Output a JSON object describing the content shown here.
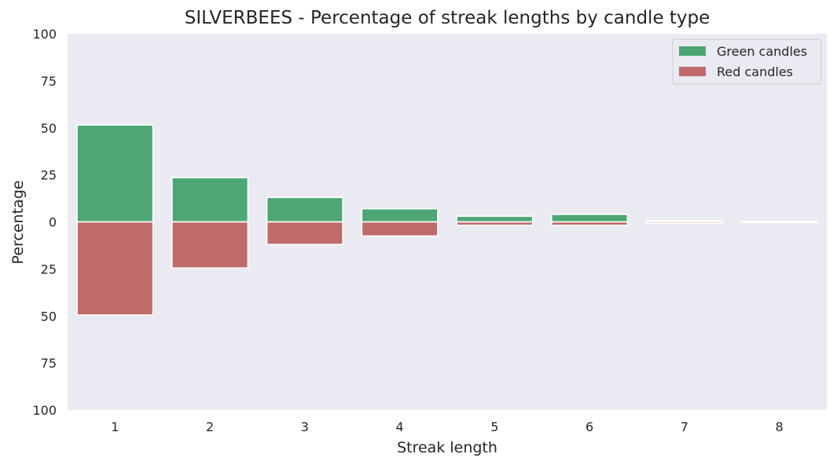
{
  "chart_data": {
    "type": "bar",
    "title": "SILVERBEES - Percentage of streak lengths by candle type",
    "xlabel": "Streak length",
    "ylabel": "Percentage",
    "categories": [
      "1",
      "2",
      "3",
      "4",
      "5",
      "6",
      "7",
      "8"
    ],
    "ylim": [
      -100,
      100
    ],
    "yticks": [
      100,
      75,
      50,
      25,
      0,
      -25,
      -50,
      -75,
      -100
    ],
    "ytick_labels": [
      "100",
      "75",
      "50",
      "25",
      "0",
      "25",
      "50",
      "75",
      "100"
    ],
    "grid": false,
    "legend_position": "top-right",
    "series": [
      {
        "name": "Green candles",
        "color": "#4da673",
        "values": [
          51.5,
          23.5,
          13.0,
          7.0,
          3.0,
          4.0,
          0.7,
          0.3
        ],
        "direction": "up"
      },
      {
        "name": "Red candles",
        "color": "#c06a6a",
        "values": [
          49.5,
          24.5,
          12.0,
          7.5,
          1.8,
          1.8,
          0.8,
          0.3
        ],
        "direction": "down"
      }
    ],
    "plot_background": "#eaeaf2"
  }
}
